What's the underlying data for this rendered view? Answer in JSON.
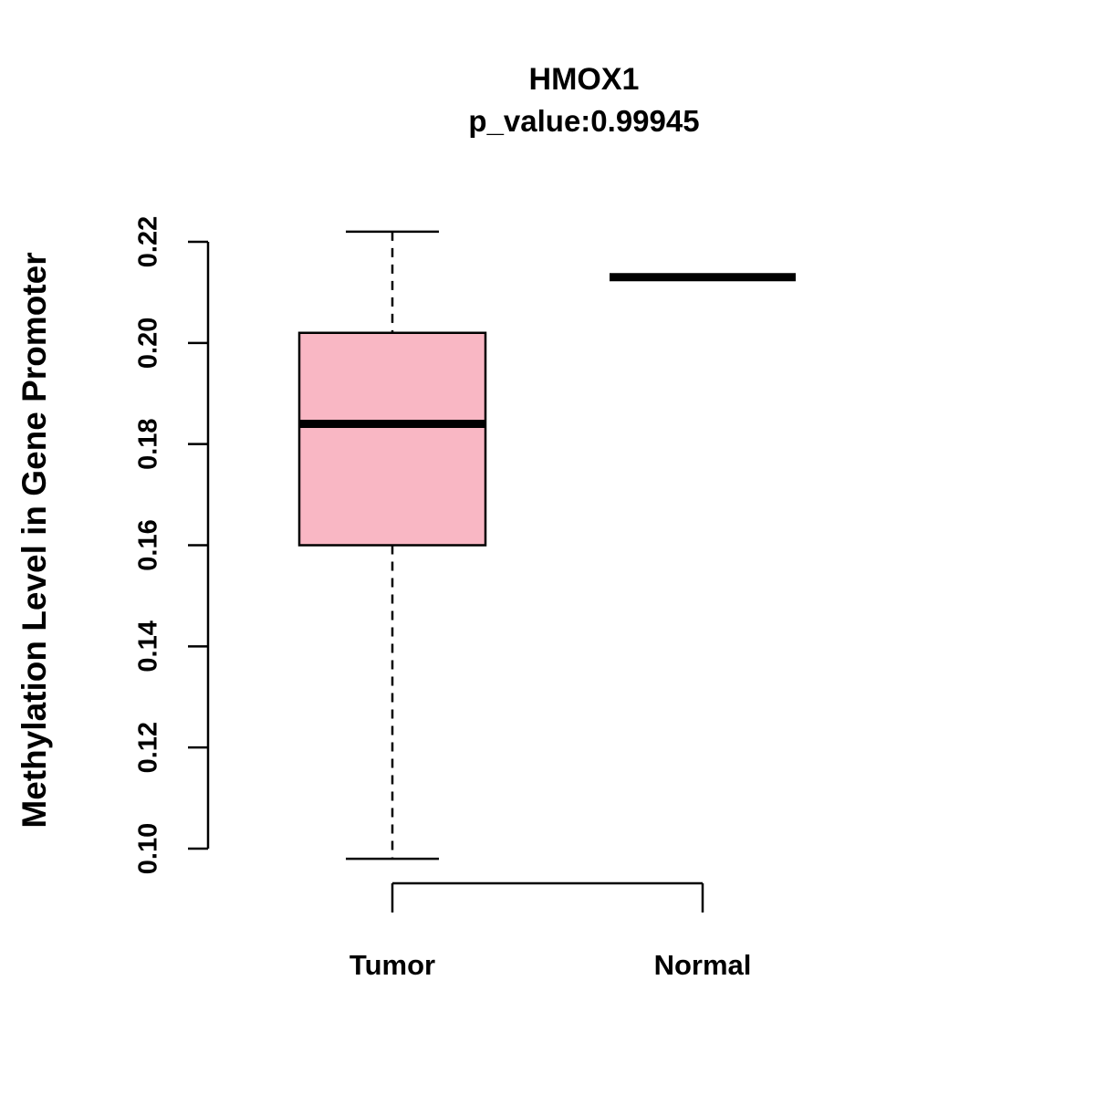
{
  "chart_data": {
    "type": "boxplot",
    "title": "HMOX1",
    "subtitle": "p_value:0.99945",
    "ylabel": "Methylation Level in Gene Promoter",
    "xlabel": "",
    "categories": [
      "Tumor",
      "Normal"
    ],
    "yticks": [
      0.1,
      0.12,
      0.14,
      0.16,
      0.18,
      0.2,
      0.22
    ],
    "ylim": [
      0.098,
      0.222
    ],
    "grid": false,
    "legend": false,
    "box_fill_color": "#F9B7C4",
    "line_color": "#000000",
    "series": [
      {
        "name": "Tumor",
        "lower_whisker": 0.098,
        "q1": 0.16,
        "median": 0.184,
        "q3": 0.202,
        "upper_whisker": 0.222
      },
      {
        "name": "Normal",
        "lower_whisker": 0.213,
        "q1": 0.213,
        "median": 0.213,
        "q3": 0.213,
        "upper_whisker": 0.213
      }
    ]
  }
}
